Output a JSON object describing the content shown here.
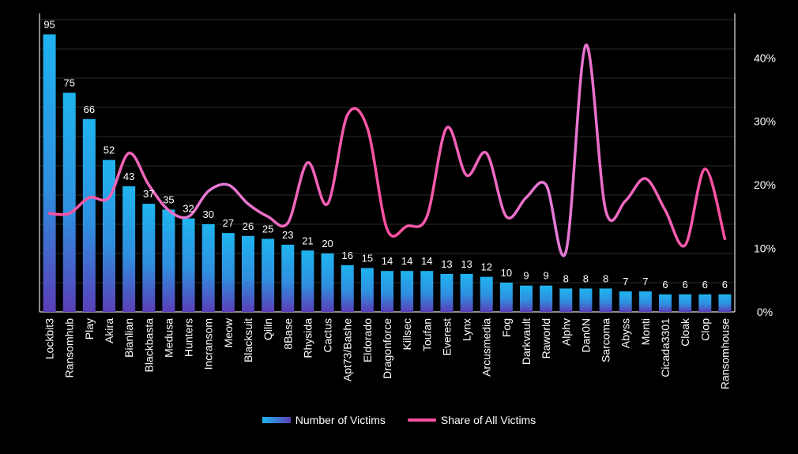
{
  "chart_data": {
    "type": "bar+line",
    "categories": [
      "Lockbit3",
      "Ransomhub",
      "Play",
      "Akira",
      "Bianlian",
      "Blackbasta",
      "Medusa",
      "Hunters",
      "Incransom",
      "Meow",
      "Blacksuit",
      "Qilin",
      "8Base",
      "Rhysida",
      "Cactus",
      "Apt73/Bashe",
      "Eldorado",
      "Dragonforce",
      "Killsec",
      "Toufan",
      "Everest",
      "Lynx",
      "Arcusmedia",
      "Fog",
      "Darkvault",
      "Raworld",
      "Alphv",
      "Dan0N",
      "Sarcoma",
      "Abyss",
      "Monti",
      "Cicada3301",
      "Cloak",
      "Clop",
      "Ransomhouse"
    ],
    "series": [
      {
        "name": "Number of Victims",
        "type": "bar",
        "axis": "left",
        "values": [
          95,
          75,
          66,
          52,
          43,
          37,
          35,
          32,
          30,
          27,
          26,
          25,
          23,
          21,
          20,
          16,
          15,
          14,
          14,
          14,
          13,
          13,
          12,
          10,
          9,
          9,
          8,
          8,
          8,
          7,
          7,
          6,
          6,
          6,
          6
        ]
      },
      {
        "name": "Share of All Victims",
        "type": "line",
        "axis": "right",
        "values": [
          15.5,
          15.5,
          18,
          18,
          25,
          20,
          16,
          15,
          19,
          20,
          17,
          15,
          14,
          23.5,
          17,
          31,
          29,
          13,
          13.5,
          15,
          29,
          21.5,
          25,
          15,
          18,
          20,
          9.5,
          42,
          16,
          17.5,
          21,
          16,
          10.5,
          22.5,
          11.5
        ]
      }
    ],
    "y_left": {
      "range": [
        0,
        100
      ],
      "tick_labels_shown": false
    },
    "y_right": {
      "range": [
        0,
        46
      ],
      "ticks": [
        "0%",
        "10%",
        "20%",
        "30%",
        "40%"
      ]
    },
    "grid": true,
    "legend_position": "bottom",
    "colors": {
      "bar_top": "#1fb4ef",
      "bar_bottom": "#5a3fb8",
      "line": "#ff4f9e",
      "line_alt": "#e28ee8",
      "background": "#000000",
      "grid": "#2c2c2c"
    }
  },
  "legend": {
    "bars_label": "Number of Victims",
    "line_label": "Share of All Victims"
  }
}
